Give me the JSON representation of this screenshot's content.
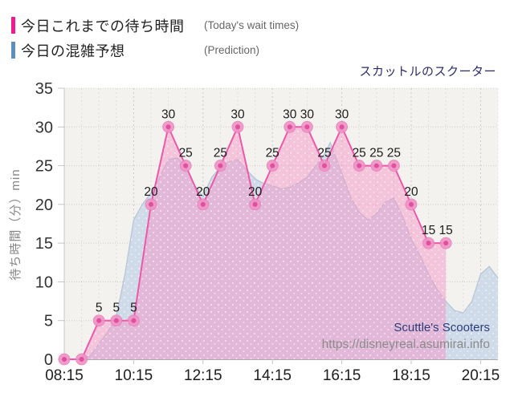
{
  "title": "スカットルのスクーター",
  "legend": {
    "items": [
      {
        "label": "今日これまでの待ち時間",
        "sublabel": "(Today's wait times)",
        "color": "#f01a94"
      },
      {
        "label": "今日の混雑予想",
        "sublabel": "(Prediction)",
        "color": "#5e90bf"
      }
    ]
  },
  "watermark": {
    "name": "Scuttle's Scooters",
    "url": "https://disneyreal.asumirai.info"
  },
  "chart_data": {
    "type": "line",
    "title": "スカットルのスクーター",
    "xlabel": "",
    "ylabel": "待ち時間（分）min",
    "ylim": [
      0,
      35
    ],
    "y_ticks": [
      0,
      5,
      10,
      15,
      20,
      25,
      30,
      35
    ],
    "x_ticks": [
      "08:15",
      "10:15",
      "12:15",
      "14:15",
      "16:15",
      "18:15",
      "20:15"
    ],
    "x_range": [
      "08:15",
      "20:45"
    ],
    "grid": true,
    "legend_position": "top-left",
    "style": {
      "plot_bg": "#f3f2ef",
      "line_color": "#ee58a8",
      "marker_outer": "#ef93c6",
      "marker_inner": "#e0509d",
      "pink_fill": "rgba(246,150,200,0.5)",
      "blue_fill": "#cfdbe8",
      "blue_edge": "#b4c4d4",
      "label_color": "#1c1c1c"
    },
    "series": [
      {
        "name": "今日これまでの待ち時間 (Today's wait times)",
        "type": "line-markers-area",
        "points": [
          [
            "08:15",
            0
          ],
          [
            "08:45",
            0
          ],
          [
            "09:15",
            5
          ],
          [
            "09:45",
            5
          ],
          [
            "10:15",
            5
          ],
          [
            "10:45",
            20
          ],
          [
            "11:15",
            30
          ],
          [
            "11:45",
            25
          ],
          [
            "12:15",
            20
          ],
          [
            "12:45",
            25
          ],
          [
            "13:15",
            30
          ],
          [
            "13:45",
            20
          ],
          [
            "14:15",
            25
          ],
          [
            "14:45",
            30
          ],
          [
            "15:15",
            30
          ],
          [
            "15:45",
            25
          ],
          [
            "16:15",
            30
          ],
          [
            "16:45",
            25
          ],
          [
            "17:15",
            25
          ],
          [
            "17:45",
            25
          ],
          [
            "18:15",
            20
          ],
          [
            "18:45",
            15
          ],
          [
            "19:15",
            15
          ]
        ]
      },
      {
        "name": "今日の混雑予想 (Prediction)",
        "type": "area",
        "points": [
          [
            "08:15",
            0
          ],
          [
            "08:45",
            0
          ],
          [
            "09:00",
            0.5
          ],
          [
            "09:15",
            2
          ],
          [
            "09:30",
            3.5
          ],
          [
            "09:45",
            5.5
          ],
          [
            "10:00",
            11
          ],
          [
            "10:15",
            18
          ],
          [
            "10:30",
            20
          ],
          [
            "10:45",
            21.5
          ],
          [
            "11:00",
            23.5
          ],
          [
            "11:15",
            25.8
          ],
          [
            "11:30",
            26
          ],
          [
            "11:45",
            25
          ],
          [
            "12:00",
            22.5
          ],
          [
            "12:15",
            21
          ],
          [
            "12:30",
            23.5
          ],
          [
            "12:45",
            24.8
          ],
          [
            "13:00",
            25.5
          ],
          [
            "13:15",
            25.8
          ],
          [
            "13:30",
            24.5
          ],
          [
            "13:45",
            23.3
          ],
          [
            "14:00",
            22.7
          ],
          [
            "14:15",
            22.4
          ],
          [
            "14:30",
            22
          ],
          [
            "14:45",
            22.2
          ],
          [
            "15:00",
            22.8
          ],
          [
            "15:15",
            23.5
          ],
          [
            "15:30",
            25
          ],
          [
            "15:45",
            26.5
          ],
          [
            "15:55",
            28
          ],
          [
            "16:15",
            24
          ],
          [
            "16:30",
            21
          ],
          [
            "16:45",
            19
          ],
          [
            "17:00",
            18
          ],
          [
            "17:15",
            18.8
          ],
          [
            "17:30",
            20.3
          ],
          [
            "17:45",
            20.8
          ],
          [
            "18:00",
            18.5
          ],
          [
            "18:15",
            15.5
          ],
          [
            "18:30",
            13.5
          ],
          [
            "18:45",
            11
          ],
          [
            "19:00",
            9
          ],
          [
            "19:15",
            7.5
          ],
          [
            "19:30",
            6.3
          ],
          [
            "19:45",
            6
          ],
          [
            "20:00",
            7.5
          ],
          [
            "20:15",
            11
          ],
          [
            "20:30",
            12
          ],
          [
            "20:45",
            10.5
          ]
        ]
      }
    ]
  }
}
